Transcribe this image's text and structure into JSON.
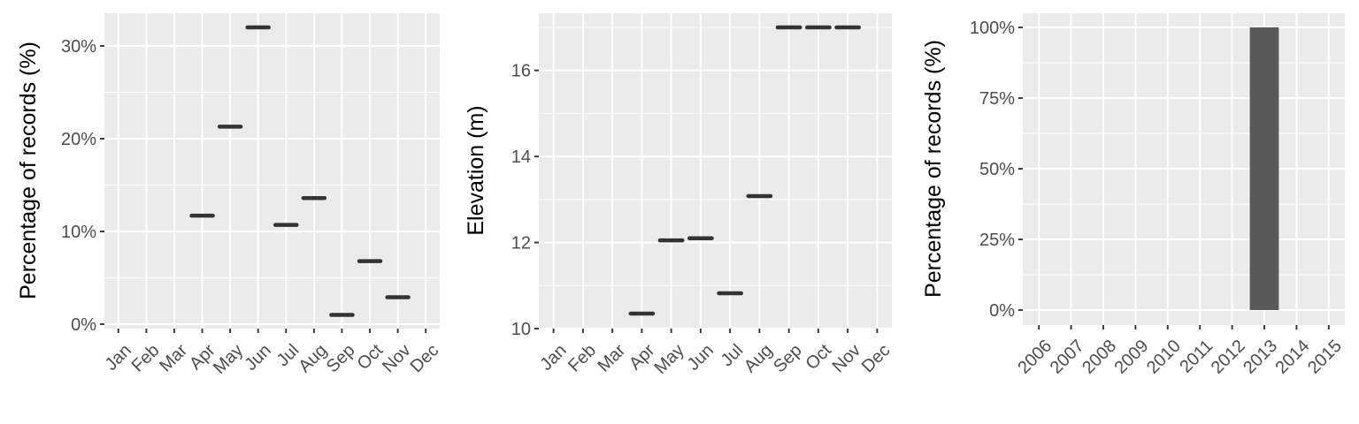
{
  "chart_data": [
    {
      "type": "line",
      "ylabel": "Percentage of records (%)",
      "categories": [
        "Jan",
        "Feb",
        "Mar",
        "Apr",
        "May",
        "Jun",
        "Jul",
        "Aug",
        "Sep",
        "Oct",
        "Nov",
        "Dec"
      ],
      "yticks": [
        "0%",
        "10%",
        "20%",
        "30%"
      ],
      "ytick_values": [
        0,
        10,
        20,
        30
      ],
      "ylim": [
        0,
        32
      ],
      "grid": true,
      "values": [
        null,
        null,
        null,
        11.7,
        21.3,
        32.0,
        10.7,
        13.6,
        1.0,
        6.8,
        2.9,
        null
      ]
    },
    {
      "type": "line",
      "ylabel": "Elevation (m)",
      "categories": [
        "Jan",
        "Feb",
        "Mar",
        "Apr",
        "May",
        "Jun",
        "Jul",
        "Aug",
        "Sep",
        "Oct",
        "Nov",
        "Dec"
      ],
      "yticks": [
        "10",
        "12",
        "14",
        "16"
      ],
      "ytick_values": [
        10,
        12,
        14,
        16
      ],
      "ylim": [
        10,
        17
      ],
      "grid": true,
      "values": [
        null,
        null,
        null,
        10.35,
        12.05,
        12.1,
        10.82,
        13.08,
        17.0,
        17.0,
        17.0,
        null
      ]
    },
    {
      "type": "bar",
      "ylabel": "Percentage of records (%)",
      "categories": [
        "2006",
        "2007",
        "2008",
        "2009",
        "2010",
        "2011",
        "2012",
        "2013",
        "2014",
        "2015"
      ],
      "yticks": [
        "0%",
        "25%",
        "50%",
        "75%",
        "100%"
      ],
      "ytick_values": [
        0,
        25,
        50,
        75,
        100
      ],
      "ylim": [
        0,
        100
      ],
      "grid": true,
      "values": [
        0,
        0,
        0,
        0,
        0,
        0,
        0,
        100,
        0,
        0
      ],
      "bar_color": "#595959"
    }
  ],
  "colors": {
    "panel_background": "#ebebeb",
    "gridline": "#ffffff",
    "mark": "#333333",
    "tick_label": "#4d4d4d"
  }
}
